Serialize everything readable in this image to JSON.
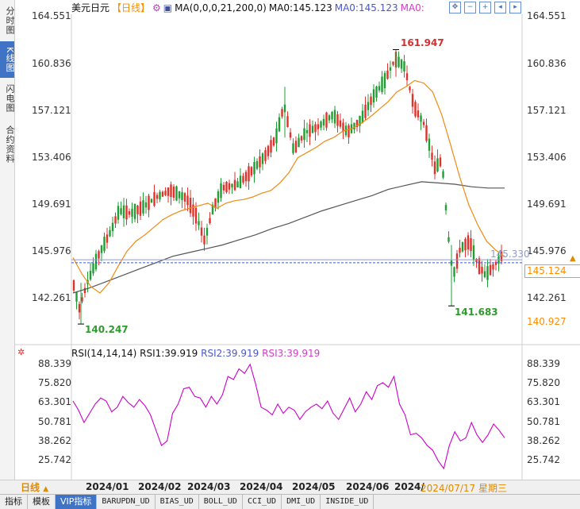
{
  "side_tabs": [
    "分时图",
    "K线图",
    "闪电图",
    "合约资料"
  ],
  "header": {
    "instrument": "美元日元",
    "period": "【日线】",
    "ma_settings": "MA(0,0,0,21,200,0)",
    "ma_first": "MA0:145.123",
    "ma_second": "MA0:145.123",
    "ma_third": "MA0:"
  },
  "price_axis": [
    "164.551",
    "160.836",
    "157.121",
    "153.406",
    "149.691",
    "145.976",
    "142.261"
  ],
  "price_levels": [
    164.551,
    160.836,
    157.121,
    153.406,
    149.691,
    145.976,
    142.261
  ],
  "current_price": "145.124",
  "current_price_value": 145.124,
  "faint_price_label": "145.330",
  "faint_price_value": 145.33,
  "low_axis_label": "140.927",
  "high_label": "161.947",
  "low_label_1": "140.247",
  "low_label_2": "141.683",
  "rsi": {
    "header": "RSI(14,14,14)",
    "rsi1": "RSI1:39.919",
    "rsi2": "RSI2:39.919",
    "rsi3": "RSI3:39.919",
    "axis": [
      "88.339",
      "75.820",
      "63.301",
      "50.781",
      "38.262",
      "25.742"
    ],
    "levels": [
      88.339,
      75.82,
      63.301,
      50.781,
      38.262,
      25.742
    ]
  },
  "bottom": {
    "period_tab": "日线",
    "months": [
      "2024/01",
      "2024/02",
      "2024/03",
      "2024/04",
      "2024/05",
      "2024/06",
      "2024/"
    ],
    "cursor_date": "2024/07/17 星期三",
    "tabs": [
      "指标",
      "模板",
      "VIP指标",
      "BARUPDN_UD",
      "BIAS_UD",
      "BOLL_UD",
      "CCI_UD",
      "DMI_UD",
      "INSIDE_UD"
    ]
  },
  "colors": {
    "up": "#e0312b",
    "down": "#1e9e33",
    "ma21": "#f08a10",
    "ma200": "#555555",
    "rsi": "#cc00cc",
    "high": "#d62d2d",
    "low": "#2e9a2e"
  },
  "chart_data": [
    {
      "type": "candlestick",
      "series": [
        {
          "name": "MA0:145.123",
          "type": "line",
          "values": [
            145.5,
            144.2,
            143.2,
            142.7,
            143.5,
            144.8,
            146.0,
            146.8,
            147.3,
            147.9,
            148.5,
            148.9,
            149.2,
            149.4,
            149.6,
            149.8,
            149.4,
            149.8,
            150.0,
            150.1,
            150.3,
            150.6,
            150.8,
            151.4,
            152.2,
            153.4,
            153.8,
            154.2,
            154.7,
            155.0,
            155.5,
            155.7,
            156.1,
            156.6,
            157.2,
            157.8,
            158.6,
            159.0,
            159.5,
            159.3,
            158.6,
            156.8,
            154.4,
            151.9,
            149.7,
            148.1,
            146.8,
            146.1,
            145.6
          ]
        },
        {
          "name": "MA200",
          "type": "line",
          "values": [
            142.7,
            143.1,
            143.6,
            144.1,
            144.6,
            145.1,
            145.6,
            145.9,
            146.2,
            146.5,
            146.9,
            147.3,
            147.8,
            148.2,
            148.7,
            149.2,
            149.6,
            150.0,
            150.4,
            150.9,
            151.2,
            151.5,
            151.4,
            151.3,
            151.1,
            151.0,
            151.0
          ]
        }
      ],
      "high": 161.947,
      "low_points": [
        140.247,
        141.683
      ],
      "ylim": [
        140.0,
        165.5
      ],
      "y_ticks": [
        164.551,
        160.836,
        157.121,
        153.406,
        149.691,
        145.976,
        142.261
      ],
      "x_ticks": [
        "2024/01",
        "2024/02",
        "2024/03",
        "2024/04",
        "2024/05",
        "2024/06",
        "2024/"
      ]
    },
    {
      "type": "line",
      "series": [
        {
          "name": "RSI1:39.919",
          "values": [
            64,
            58,
            50,
            56,
            62,
            66,
            64,
            57,
            60,
            67,
            63,
            60,
            65,
            61,
            55,
            45,
            35,
            38,
            56,
            62,
            72,
            73,
            67,
            66,
            60,
            67,
            62,
            68,
            80,
            78,
            85,
            82,
            88,
            75,
            60,
            58,
            55,
            62,
            56,
            60,
            58,
            52,
            57,
            60,
            62,
            59,
            64,
            56,
            52,
            59,
            66,
            57,
            62,
            70,
            65,
            74,
            76,
            73,
            80,
            62,
            55,
            42,
            43,
            40,
            35,
            32,
            25,
            20,
            35,
            44,
            38,
            40,
            50,
            42,
            37,
            42,
            49,
            45,
            40
          ]
        }
      ],
      "ylim": [
        18,
        92
      ],
      "y_ticks": [
        88.339,
        75.82,
        63.301,
        50.781,
        38.262,
        25.742
      ]
    }
  ]
}
